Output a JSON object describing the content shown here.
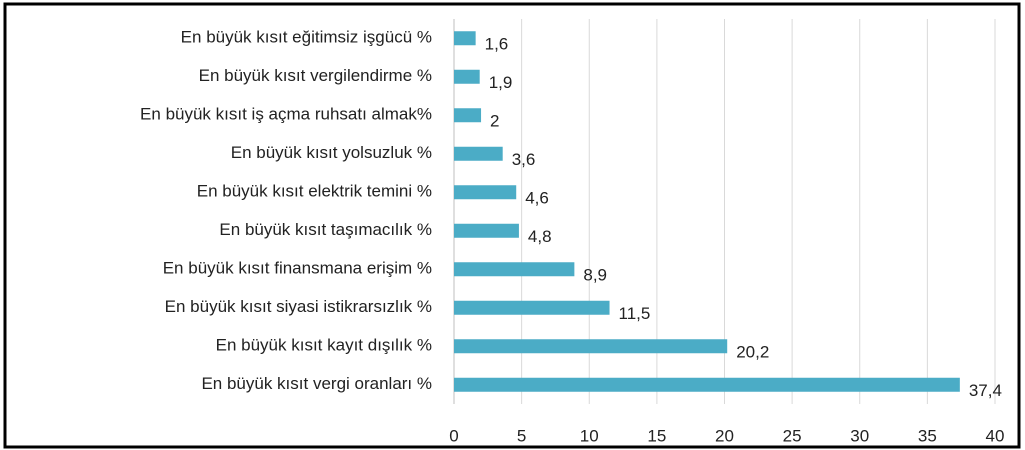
{
  "chart_data": {
    "type": "hbar",
    "categories": [
      "En büyük kısıt eğitimsiz işgücü %",
      "En büyük kısıt vergilendirme %",
      "En büyük kısıt iş açma ruhsatı almak%",
      "En büyük kısıt yolsuzluk %",
      "En büyük kısıt elektrik temini %",
      "En büyük kısıt taşımacılık %",
      "En büyük kısıt finansmana erişim %",
      "En büyük kısıt siyasi istikrarsızlık %",
      "En büyük kısıt kayıt dışılık %",
      "En büyük kısıt vergi oranları %"
    ],
    "values": [
      1.6,
      1.9,
      2,
      3.6,
      4.6,
      4.8,
      8.9,
      11.5,
      20.2,
      37.4
    ],
    "value_labels": [
      "1,6",
      "1,9",
      "2",
      "3,6",
      "4,6",
      "4,8",
      "8,9",
      "11,5",
      "20,2",
      "37,4"
    ],
    "color": "#4bacc6",
    "xlim": [
      0,
      40
    ],
    "xticks": [
      0,
      5,
      10,
      15,
      20,
      25,
      30,
      35,
      40
    ],
    "grid": true
  }
}
